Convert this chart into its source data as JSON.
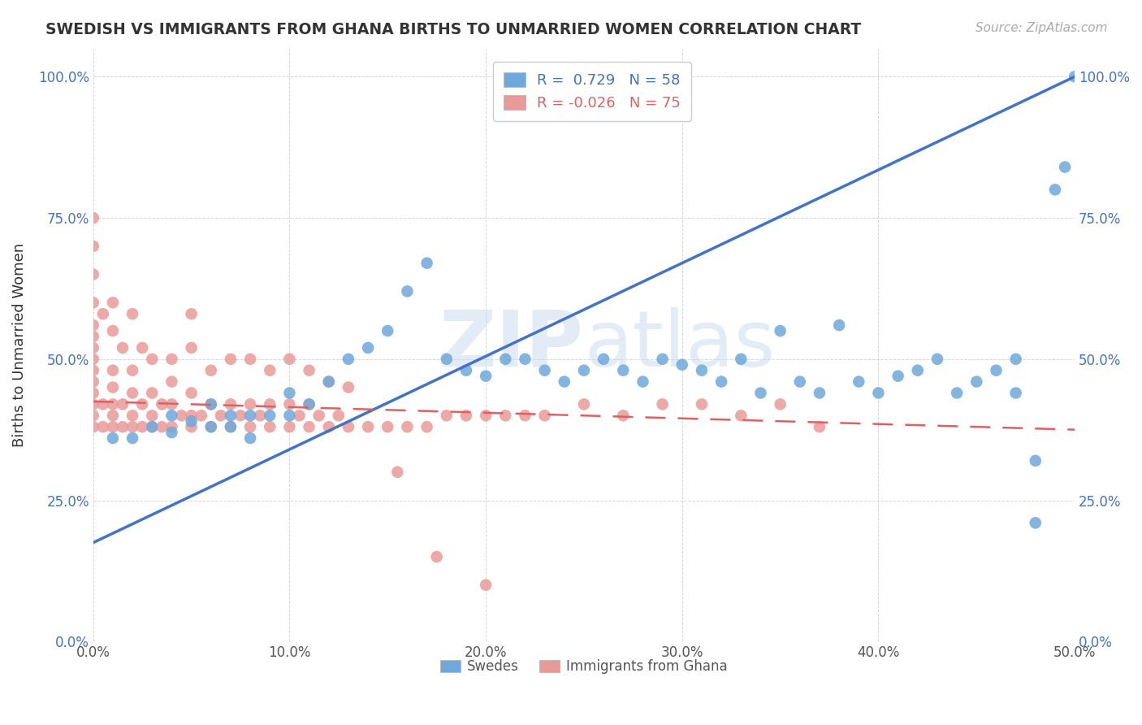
{
  "title": "SWEDISH VS IMMIGRANTS FROM GHANA BIRTHS TO UNMARRIED WOMEN CORRELATION CHART",
  "source": "Source: ZipAtlas.com",
  "ylabel": "Births to Unmarried Women",
  "xlabel_swedes": "Swedes",
  "xlabel_ghana": "Immigrants from Ghana",
  "xmin": 0.0,
  "xmax": 0.5,
  "ymin": 0.0,
  "ymax": 1.05,
  "r_swedes": 0.729,
  "n_swedes": 58,
  "r_ghana": -0.026,
  "n_ghana": 75,
  "color_swedes": "#6fa8dc",
  "color_ghana": "#ea9999",
  "color_swedes_line": "#4472c4",
  "color_ghana_line": "#e06060",
  "watermark_color": "#c8d8ee",
  "yticks": [
    0.0,
    0.25,
    0.5,
    0.75,
    1.0
  ],
  "ytick_labels": [
    "0.0%",
    "25.0%",
    "50.0%",
    "75.0%",
    "100.0%"
  ],
  "xticks": [
    0.0,
    0.1,
    0.2,
    0.3,
    0.4,
    0.5
  ],
  "xtick_labels": [
    "0.0%",
    "10.0%",
    "20.0%",
    "30.0%",
    "40.0%",
    "50.0%"
  ],
  "swedes_line_x0": 0.0,
  "swedes_line_y0": 0.175,
  "swedes_line_x1": 0.5,
  "swedes_line_y1": 1.0,
  "ghana_line_x0": 0.0,
  "ghana_line_y0": 0.425,
  "ghana_line_x1": 0.5,
  "ghana_line_y1": 0.375,
  "swedes_x": [
    0.01,
    0.02,
    0.03,
    0.04,
    0.04,
    0.05,
    0.06,
    0.06,
    0.07,
    0.07,
    0.08,
    0.08,
    0.09,
    0.1,
    0.1,
    0.11,
    0.12,
    0.13,
    0.14,
    0.15,
    0.16,
    0.17,
    0.18,
    0.19,
    0.2,
    0.21,
    0.22,
    0.23,
    0.24,
    0.25,
    0.26,
    0.27,
    0.28,
    0.29,
    0.3,
    0.31,
    0.32,
    0.33,
    0.34,
    0.35,
    0.36,
    0.37,
    0.38,
    0.39,
    0.4,
    0.41,
    0.42,
    0.43,
    0.44,
    0.45,
    0.46,
    0.47,
    0.47,
    0.48,
    0.48,
    0.49,
    0.495,
    0.5
  ],
  "swedes_y": [
    0.36,
    0.36,
    0.38,
    0.37,
    0.4,
    0.39,
    0.38,
    0.42,
    0.38,
    0.4,
    0.36,
    0.4,
    0.4,
    0.4,
    0.44,
    0.42,
    0.46,
    0.5,
    0.52,
    0.55,
    0.62,
    0.67,
    0.5,
    0.48,
    0.47,
    0.5,
    0.5,
    0.48,
    0.46,
    0.48,
    0.5,
    0.48,
    0.46,
    0.5,
    0.49,
    0.48,
    0.46,
    0.5,
    0.44,
    0.55,
    0.46,
    0.44,
    0.56,
    0.46,
    0.44,
    0.47,
    0.48,
    0.5,
    0.44,
    0.46,
    0.48,
    0.44,
    0.5,
    0.21,
    0.32,
    0.8,
    0.84,
    1.0
  ],
  "ghana_x": [
    0.0,
    0.0,
    0.0,
    0.0,
    0.0,
    0.0,
    0.0,
    0.0,
    0.0,
    0.0,
    0.005,
    0.005,
    0.01,
    0.01,
    0.01,
    0.01,
    0.01,
    0.015,
    0.015,
    0.02,
    0.02,
    0.02,
    0.02,
    0.025,
    0.025,
    0.03,
    0.03,
    0.03,
    0.035,
    0.035,
    0.04,
    0.04,
    0.04,
    0.045,
    0.05,
    0.05,
    0.05,
    0.055,
    0.06,
    0.06,
    0.065,
    0.07,
    0.07,
    0.075,
    0.08,
    0.08,
    0.085,
    0.09,
    0.09,
    0.1,
    0.1,
    0.105,
    0.11,
    0.11,
    0.115,
    0.12,
    0.125,
    0.13,
    0.14,
    0.15,
    0.16,
    0.17,
    0.18,
    0.19,
    0.2,
    0.21,
    0.22,
    0.23,
    0.25,
    0.27,
    0.29,
    0.31,
    0.33,
    0.35,
    0.37
  ],
  "ghana_y": [
    0.38,
    0.4,
    0.42,
    0.44,
    0.46,
    0.48,
    0.5,
    0.52,
    0.54,
    0.56,
    0.38,
    0.42,
    0.38,
    0.4,
    0.42,
    0.45,
    0.48,
    0.38,
    0.42,
    0.38,
    0.4,
    0.44,
    0.48,
    0.38,
    0.42,
    0.38,
    0.4,
    0.44,
    0.38,
    0.42,
    0.38,
    0.42,
    0.46,
    0.4,
    0.38,
    0.4,
    0.44,
    0.4,
    0.38,
    0.42,
    0.4,
    0.38,
    0.42,
    0.4,
    0.38,
    0.42,
    0.4,
    0.38,
    0.42,
    0.38,
    0.42,
    0.4,
    0.38,
    0.42,
    0.4,
    0.38,
    0.4,
    0.38,
    0.38,
    0.38,
    0.38,
    0.38,
    0.4,
    0.4,
    0.4,
    0.4,
    0.4,
    0.4,
    0.42,
    0.4,
    0.42,
    0.42,
    0.4,
    0.42,
    0.38
  ],
  "ghana_outliers_x": [
    0.0,
    0.0,
    0.0,
    0.0,
    0.005,
    0.01,
    0.01,
    0.015,
    0.02,
    0.025,
    0.03,
    0.04,
    0.05,
    0.05,
    0.06,
    0.07,
    0.08,
    0.09,
    0.1,
    0.11,
    0.12,
    0.13,
    0.155,
    0.175,
    0.2
  ],
  "ghana_outliers_y": [
    0.6,
    0.65,
    0.7,
    0.75,
    0.58,
    0.55,
    0.6,
    0.52,
    0.58,
    0.52,
    0.5,
    0.5,
    0.52,
    0.58,
    0.48,
    0.5,
    0.5,
    0.48,
    0.5,
    0.48,
    0.46,
    0.45,
    0.3,
    0.15,
    0.1
  ]
}
